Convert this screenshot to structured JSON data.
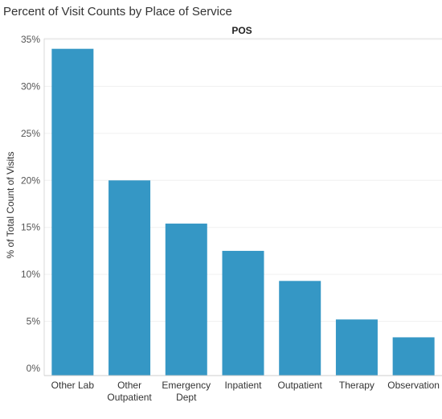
{
  "chart_data": {
    "type": "bar",
    "title": "Percent of Visit Counts by Place of Service",
    "column_header": "POS",
    "ylabel": "% of Total Count of Visits",
    "categories": [
      [
        "Other Lab"
      ],
      [
        "Other",
        "Outpatient"
      ],
      [
        "Emergency",
        "Dept"
      ],
      [
        "Inpatient"
      ],
      [
        "Outpatient"
      ],
      [
        "Therapy"
      ],
      [
        "Observation"
      ]
    ],
    "values": [
      34.0,
      20.0,
      15.4,
      12.5,
      9.3,
      5.2,
      3.3
    ],
    "ylim": [
      0,
      35
    ],
    "yticks": [
      0,
      5,
      10,
      15,
      20,
      25,
      30,
      35
    ],
    "ytick_labels": [
      "0%",
      "5%",
      "10%",
      "15%",
      "20%",
      "25%",
      "30%",
      "35%"
    ],
    "grid": true,
    "bar_color": "#3597c5"
  }
}
